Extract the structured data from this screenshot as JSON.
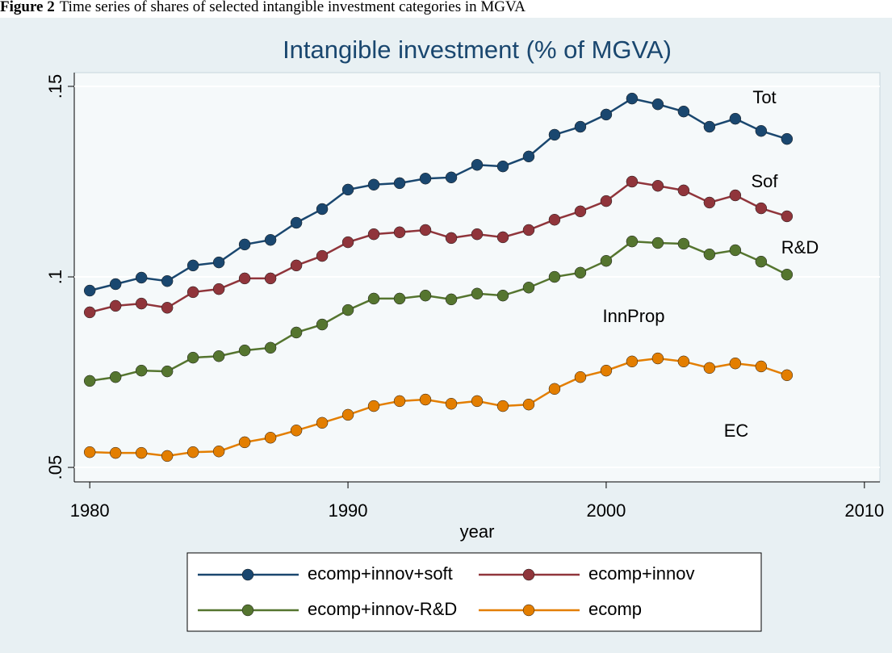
{
  "caption": {
    "label": "Figure 2",
    "text": "Time series of shares of selected intangible investment categories in MGVA"
  },
  "chart_data": {
    "type": "line",
    "title": "Intangible investment (% of MGVA)",
    "xlabel": "year",
    "x": [
      1980,
      1981,
      1982,
      1983,
      1984,
      1985,
      1986,
      1987,
      1988,
      1989,
      1990,
      1991,
      1992,
      1993,
      1994,
      1995,
      1996,
      1997,
      1998,
      1999,
      2000,
      2001,
      2002,
      2003,
      2004,
      2005,
      2006,
      2007
    ],
    "series": [
      {
        "name": "ecomp+innov+soft",
        "color": "#1a476f",
        "values": [
          0.0964,
          0.0981,
          0.0998,
          0.0989,
          0.103,
          0.1038,
          0.1085,
          0.1097,
          0.1142,
          0.1178,
          0.1229,
          0.1242,
          0.1246,
          0.1258,
          0.1261,
          0.1294,
          0.129,
          0.1316,
          0.1373,
          0.1394,
          0.1426,
          0.1468,
          0.1453,
          0.1434,
          0.1394,
          0.1415,
          0.1383,
          0.1362
        ]
      },
      {
        "name": "ecomp+innov",
        "color": "#90353b",
        "values": [
          0.0907,
          0.0924,
          0.093,
          0.0919,
          0.096,
          0.0968,
          0.0996,
          0.0996,
          0.103,
          0.1055,
          0.1091,
          0.1112,
          0.1117,
          0.1123,
          0.1102,
          0.1112,
          0.1104,
          0.1123,
          0.115,
          0.1172,
          0.1199,
          0.125,
          0.1239,
          0.1227,
          0.1195,
          0.1214,
          0.118,
          0.1159
        ]
      },
      {
        "name": "ecomp+innov-R&D",
        "color": "#55752f",
        "values": [
          0.0727,
          0.0737,
          0.0754,
          0.0752,
          0.0788,
          0.0792,
          0.0807,
          0.0814,
          0.0854,
          0.0875,
          0.0913,
          0.0943,
          0.0943,
          0.0951,
          0.0941,
          0.0956,
          0.0951,
          0.0972,
          0.1,
          0.1011,
          0.1042,
          0.1093,
          0.1089,
          0.1087,
          0.1059,
          0.107,
          0.104,
          0.1006
        ]
      },
      {
        "name": "ecomp",
        "color": "#e37e00",
        "values": [
          0.054,
          0.0538,
          0.0538,
          0.053,
          0.054,
          0.0542,
          0.0566,
          0.0578,
          0.0597,
          0.0617,
          0.0638,
          0.0661,
          0.0674,
          0.0678,
          0.0667,
          0.0674,
          0.0661,
          0.0665,
          0.0706,
          0.0737,
          0.0754,
          0.0778,
          0.0786,
          0.0778,
          0.0761,
          0.0773,
          0.0765,
          0.0742
        ]
      }
    ],
    "annotations": [
      "Tot",
      "Sof",
      "R&D",
      "InnProp",
      "EC"
    ],
    "xlim": [
      1979.4,
      2010.6
    ],
    "xticks": [
      1980,
      1990,
      2000,
      2010
    ],
    "ylim": [
      0.0462,
      0.1536
    ],
    "yticks": [
      {
        "value": 0.05,
        "label": ".05"
      },
      {
        "value": 0.1,
        "label": ".1"
      },
      {
        "value": 0.15,
        "label": ".15"
      }
    ],
    "grid": true,
    "legend": "bottom"
  }
}
